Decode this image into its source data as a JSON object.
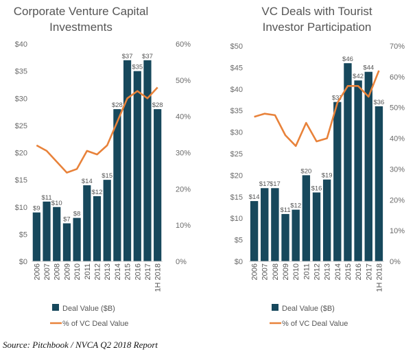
{
  "source": "Source: Pitchbook / NVCA Q2 2018 Report",
  "colors": {
    "bar": "#17485c",
    "line": "#e8823a"
  },
  "chart_data": [
    {
      "type": "bar",
      "title_lines": [
        "Corporate Venture Capital",
        "Investments"
      ],
      "categories": [
        "2006",
        "2007",
        "2008",
        "2009",
        "2010",
        "2011",
        "2012",
        "2013",
        "2014",
        "2015",
        "2016",
        "2017",
        "1H 2018"
      ],
      "series": [
        {
          "name": "Deal Value ($B)",
          "type": "bar",
          "axis": "left",
          "values": [
            9,
            11,
            10,
            7,
            8,
            14,
            12,
            15,
            28,
            37,
            35,
            37,
            28
          ],
          "labels": [
            "$9",
            "$11",
            "$10",
            "$7",
            "$8",
            "$14",
            "$12",
            "$15",
            "$28",
            "$37",
            "$35",
            "$37",
            "$28"
          ]
        },
        {
          "name": "% of VC Deal Value",
          "type": "line",
          "axis": "right",
          "values": [
            32,
            30.5,
            27.5,
            24.5,
            25.5,
            30.5,
            29.5,
            32,
            38.5,
            45,
            47,
            45,
            48
          ]
        }
      ],
      "y_left": {
        "min": 0,
        "max": 40,
        "ticks": [
          0,
          5,
          10,
          15,
          20,
          25,
          30,
          35,
          40
        ],
        "tick_labels": [
          "$0",
          "$5",
          "$10",
          "$15",
          "$20",
          "$25",
          "$30",
          "$35",
          "$40"
        ]
      },
      "y_right": {
        "min": 0,
        "max": 60,
        "ticks": [
          0,
          10,
          20,
          30,
          40,
          50,
          60
        ],
        "tick_labels": [
          "0%",
          "10%",
          "20%",
          "30%",
          "40%",
          "50%",
          "60%"
        ]
      },
      "grid": false,
      "legend": "bottom"
    },
    {
      "type": "bar",
      "title_lines": [
        "VC Deals with Tourist",
        "Investor Participation"
      ],
      "categories": [
        "2006",
        "2007",
        "2008",
        "2009",
        "2010",
        "2011",
        "2012",
        "2013",
        "2014",
        "2015",
        "2016",
        "2017",
        "1H 2018"
      ],
      "series": [
        {
          "name": "Deal Value ($B)",
          "type": "bar",
          "axis": "left",
          "values": [
            14,
            17,
            17,
            11,
            12,
            20,
            16,
            19,
            37,
            46,
            42,
            44,
            36
          ],
          "labels": [
            "$14",
            "$17",
            "$17",
            "$11",
            "$12",
            "$20",
            "$16",
            "$19",
            "$37",
            "$46",
            "$42",
            "$44",
            "$36"
          ]
        },
        {
          "name": "% of VC Deal Value",
          "type": "line",
          "axis": "right",
          "values": [
            47,
            48,
            47.5,
            41,
            37.5,
            45,
            39,
            40,
            51.5,
            57,
            57,
            53.5,
            62
          ]
        }
      ],
      "y_left": {
        "min": 0,
        "max": 50,
        "ticks": [
          0,
          5,
          10,
          15,
          20,
          25,
          30,
          35,
          40,
          45,
          50
        ],
        "tick_labels": [
          "$0",
          "$5",
          "$10",
          "$15",
          "$20",
          "$25",
          "$30",
          "$35",
          "$40",
          "$45",
          "$50"
        ]
      },
      "y_right": {
        "min": 0,
        "max": 70,
        "ticks": [
          0,
          10,
          20,
          30,
          40,
          50,
          60,
          70
        ],
        "tick_labels": [
          "0%",
          "10%",
          "20%",
          "30%",
          "40%",
          "50%",
          "60%",
          "70%"
        ]
      },
      "grid": false,
      "legend": "bottom"
    }
  ]
}
